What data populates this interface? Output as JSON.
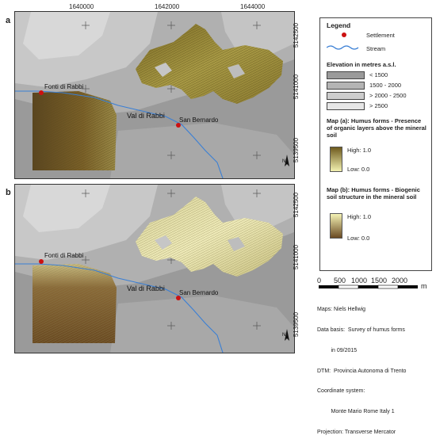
{
  "panels": [
    {
      "label": "a"
    },
    {
      "label": "b"
    }
  ],
  "coords": {
    "top_x": [
      "1640000",
      "1642000",
      "1644000"
    ],
    "right_y_a": [
      "5142500",
      "5141000",
      "5139500"
    ],
    "right_y_b": [
      "5142500",
      "5141000",
      "5139500"
    ]
  },
  "places": {
    "fonti": "Fonti di Rabbi",
    "val": "Val di Rabbi",
    "san": "San Bernardo"
  },
  "north": "N",
  "legend": {
    "title": "Legend",
    "settlement": "Settlement",
    "stream": "Stream",
    "elevation_title": "Elevation in metres a.s.l.",
    "elevation_classes": [
      "< 1500",
      "1500 - 2000",
      "> 2000 - 2500",
      "> 2500"
    ],
    "elevation_colors": [
      "#9a9a9a",
      "#b4b4b4",
      "#cdcdcd",
      "#e6e6e6"
    ],
    "map_a_title": "Map (a): Humus forms - Presence of organic layers above the mineral soil",
    "map_a_high": "High: 1.0",
    "map_a_low": "Low: 0.0",
    "map_b_title": "Map (b): Humus forms - Biogenic soil structure in the mineral soil",
    "map_b_high": "High: 1.0",
    "map_b_low": "Low: 0.0"
  },
  "scale": {
    "ticks": [
      "0",
      "500",
      "1000",
      "1500",
      "2000"
    ],
    "unit": "m"
  },
  "credits": [
    "Maps: Niels Hellwig",
    "Data basis:  Survey of humus forms",
    "         in 09/2015",
    "DTM:  Provincia Autonoma di Trento",
    "Coordinate system:",
    "         Monte Mario Rome Italy 1",
    "Projection: Transverse Mercator"
  ],
  "colors": {
    "settlement": "#cc1111",
    "stream": "#3a7fd5",
    "ramp_a_high": "#6e5a1e",
    "ramp_a_low": "#f2f0b0",
    "ramp_b_high": "#f5f3b5",
    "ramp_b_low": "#6a4a22"
  }
}
